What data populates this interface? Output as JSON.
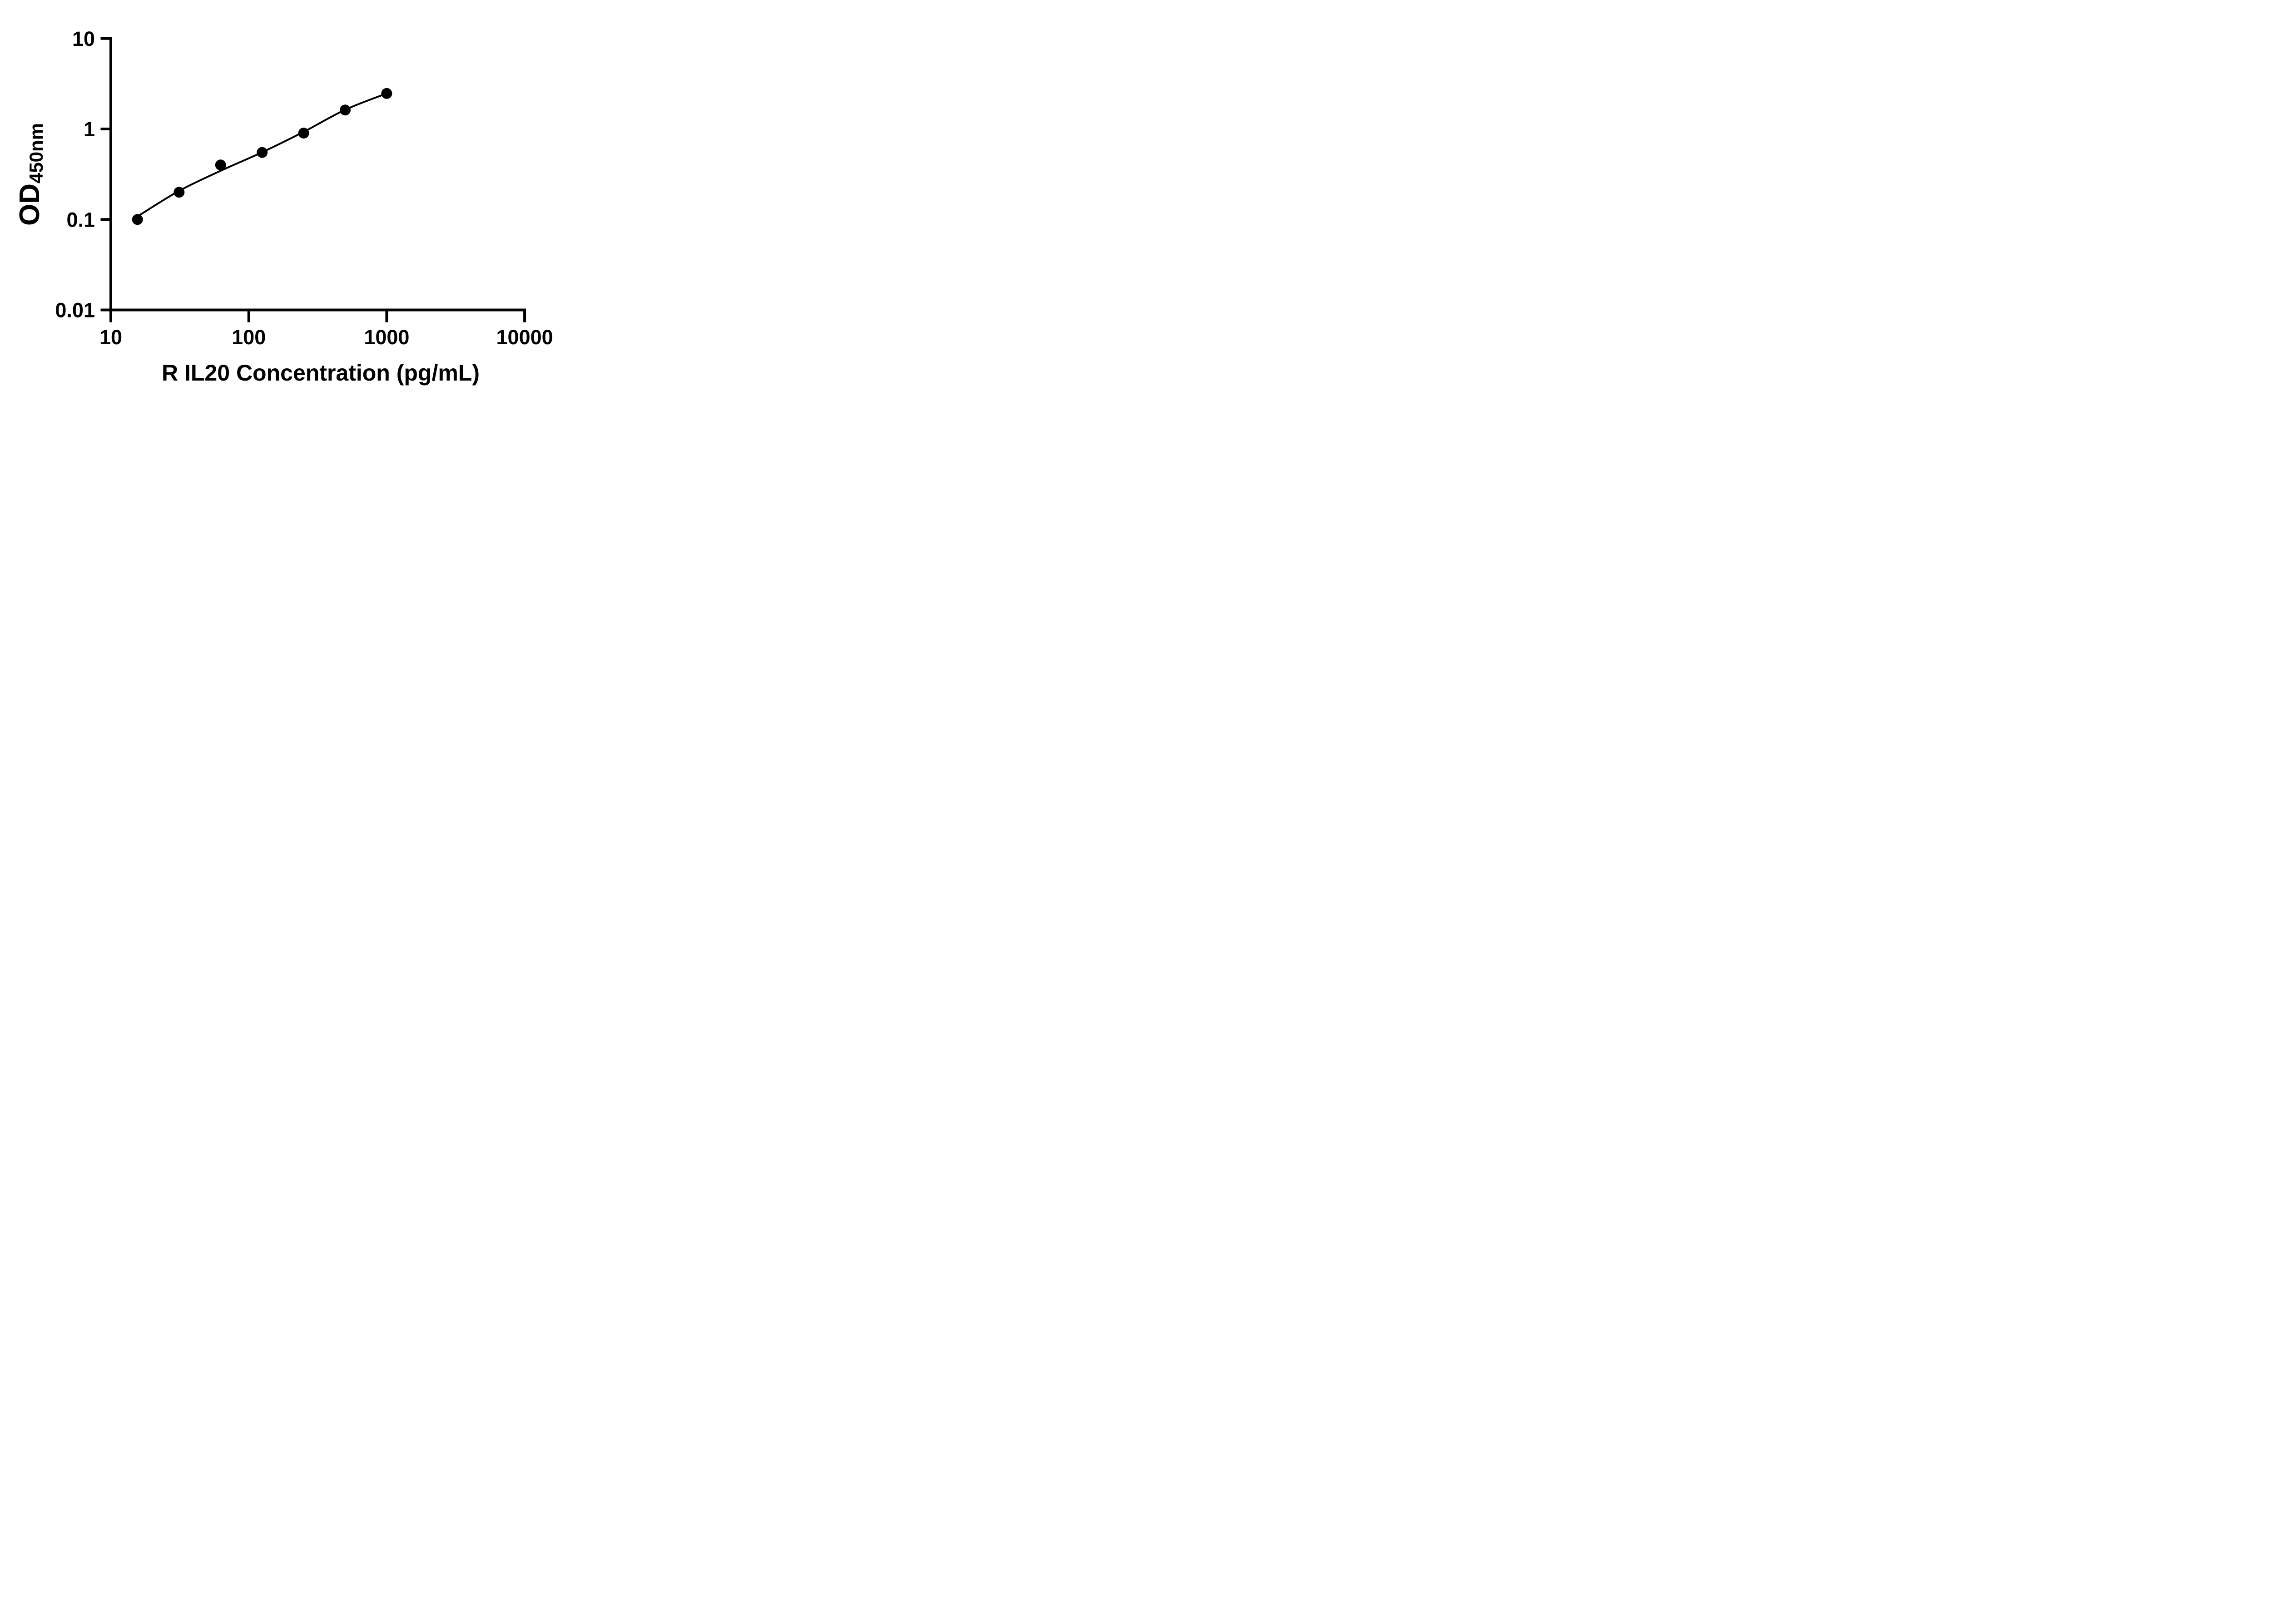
{
  "figure": {
    "background_color": "#ffffff",
    "ink_color": "#000000"
  },
  "x_axis": {
    "title": "R IL20 Concentration (pg/mL)",
    "scale": "log10",
    "range": [
      10,
      10000
    ],
    "ticks": [
      10,
      100,
      1000,
      10000
    ],
    "tick_labels": [
      "10",
      "100",
      "1000",
      "10000"
    ]
  },
  "y_axis": {
    "label_main": "OD",
    "label_sub": "450nm",
    "scale": "log10",
    "range": [
      0.01,
      10
    ],
    "ticks": [
      10,
      1,
      0.1,
      0.01
    ],
    "tick_labels": [
      "10",
      "1",
      "0.1",
      "0.01"
    ]
  },
  "chart_data": {
    "type": "scatter",
    "title": "",
    "xlabel": "R IL20 Concentration (pg/mL)",
    "ylabel": "OD450nm",
    "x_scale": "log10",
    "y_scale": "log10",
    "xlim": [
      10,
      10000
    ],
    "ylim": [
      0.01,
      10
    ],
    "x_ticks": [
      10,
      100,
      1000,
      10000
    ],
    "y_ticks": [
      10,
      1,
      0.1,
      0.01
    ],
    "grid": false,
    "legend": false,
    "series": [
      {
        "name": "standard curve data points",
        "marker": "filled-circle",
        "color": "#000000",
        "x": [
          15.6,
          31.25,
          62.5,
          125,
          250,
          500,
          1000
        ],
        "y": [
          0.1,
          0.2,
          0.4,
          0.55,
          0.9,
          1.62,
          2.47
        ]
      }
    ],
    "fit_curve": {
      "name": "fitted standard curve line",
      "color": "#000000",
      "x": [
        15.6,
        31.25,
        62.5,
        125,
        250,
        500,
        1000
      ],
      "y": [
        0.108,
        0.207,
        0.345,
        0.553,
        0.93,
        1.63,
        2.47
      ]
    }
  }
}
